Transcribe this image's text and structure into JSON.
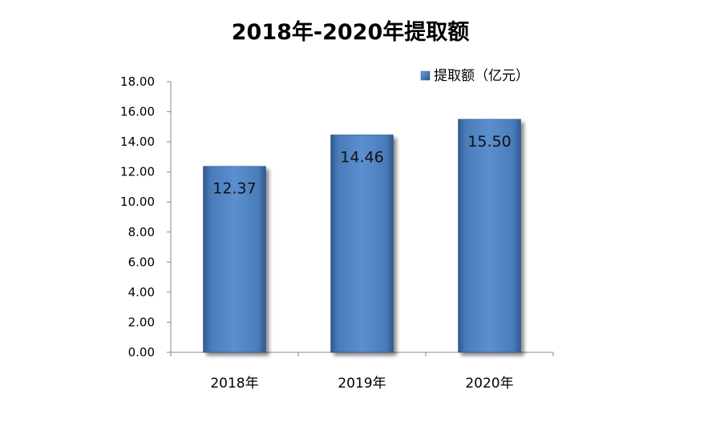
{
  "chart_data": {
    "type": "bar",
    "title": "2018年-2020年提取额",
    "categories": [
      "2018年",
      "2019年",
      "2020年"
    ],
    "series": [
      {
        "name": "提取额（亿元）",
        "values": [
          12.37,
          14.46,
          15.5
        ],
        "value_labels": [
          "12.37",
          "14.46",
          "15.50"
        ],
        "color": "#4F81BD"
      }
    ],
    "ylim": [
      0,
      18
    ],
    "yticks": [
      "0.00",
      "2.00",
      "4.00",
      "6.00",
      "8.00",
      "10.00",
      "12.00",
      "14.00",
      "16.00",
      "18.00"
    ],
    "xlabel": "",
    "ylabel": "",
    "legend_position": "top-right",
    "grid": false
  }
}
